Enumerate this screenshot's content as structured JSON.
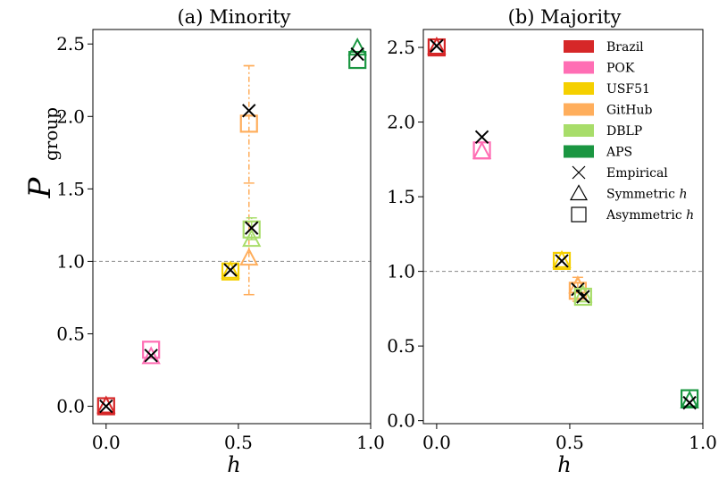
{
  "colors": {
    "Brazil": "#d62728",
    "POK": "#ff6eb4",
    "USF51": "#f5d000",
    "GitHub": "#ffae5c",
    "DBLP": "#a8dd6a",
    "APS": "#1a9641",
    "empirical": "#000000",
    "reference_line": "#888888"
  },
  "chart_data": [
    {
      "type": "scatter",
      "panel": "a",
      "title": "(a) Minority",
      "xlabel": "h",
      "ylabel": "P_group",
      "ylabel_main": "P",
      "ylabel_sub": "group",
      "xlim": [
        -0.05,
        1.0
      ],
      "ylim": [
        -0.12,
        2.6
      ],
      "xticks": [
        "0.0",
        "0.5",
        "1.0"
      ],
      "yticks": [
        "0.0",
        "0.5",
        "1.0",
        "1.5",
        "2.0",
        "2.5"
      ],
      "reference_y": 1.0,
      "points": [
        {
          "dataset": "Brazil",
          "x": 0.0,
          "empirical": 0.0,
          "symmetric": 0.0,
          "asymmetric": 0.0
        },
        {
          "dataset": "POK",
          "x": 0.17,
          "empirical": 0.35,
          "symmetric": 0.34,
          "asymmetric": 0.39
        },
        {
          "dataset": "USF51",
          "x": 0.47,
          "empirical": 0.94,
          "symmetric": 0.93,
          "asymmetric": 0.93
        },
        {
          "dataset": "GitHub",
          "x": 0.54,
          "empirical": 2.04,
          "symmetric": 1.02,
          "asymmetric": 1.95,
          "err_low": 0.77,
          "err_high": 2.35,
          "err_sym_low": 1.54,
          "err_sym_high": 2.35
        },
        {
          "dataset": "DBLP",
          "x": 0.55,
          "empirical": 1.23,
          "symmetric": 1.15,
          "asymmetric": 1.22,
          "err_low": 1.15,
          "err_high": 1.3
        },
        {
          "dataset": "APS",
          "x": 0.95,
          "empirical": 2.43,
          "symmetric": 2.47,
          "asymmetric": 2.39
        }
      ]
    },
    {
      "type": "scatter",
      "panel": "b",
      "title": "(b) Majority",
      "xlabel": "h",
      "xlim": [
        -0.05,
        1.0
      ],
      "ylim": [
        -0.02,
        2.62
      ],
      "xticks": [
        "0.0",
        "0.5",
        "1.0"
      ],
      "yticks": [
        "0.0",
        "0.5",
        "1.0",
        "1.5",
        "2.0",
        "2.5"
      ],
      "reference_y": 1.0,
      "points": [
        {
          "dataset": "Brazil",
          "x": 0.0,
          "empirical": 2.51,
          "symmetric": 2.5,
          "asymmetric": 2.5
        },
        {
          "dataset": "POK",
          "x": 0.17,
          "empirical": 1.9,
          "symmetric": 1.8,
          "asymmetric": 1.81
        },
        {
          "dataset": "USF51",
          "x": 0.47,
          "empirical": 1.07,
          "symmetric": 1.07,
          "asymmetric": 1.07
        },
        {
          "dataset": "GitHub",
          "x": 0.53,
          "empirical": 0.88,
          "symmetric": 0.9,
          "asymmetric": 0.87,
          "err_low": 0.8,
          "err_high": 0.96
        },
        {
          "dataset": "DBLP",
          "x": 0.55,
          "empirical": 0.83,
          "symmetric": 0.84,
          "asymmetric": 0.83
        },
        {
          "dataset": "APS",
          "x": 0.95,
          "empirical": 0.12,
          "symmetric": 0.13,
          "asymmetric": 0.15
        }
      ]
    }
  ],
  "legend": {
    "placement": "top-right of panel b",
    "datasets": [
      "Brazil",
      "POK",
      "USF51",
      "GitHub",
      "DBLP",
      "APS"
    ],
    "empirical": "Empirical",
    "symmetric_prefix": "Symmetric ",
    "asymmetric_prefix": "Asymmetric ",
    "h_symbol": "h"
  }
}
